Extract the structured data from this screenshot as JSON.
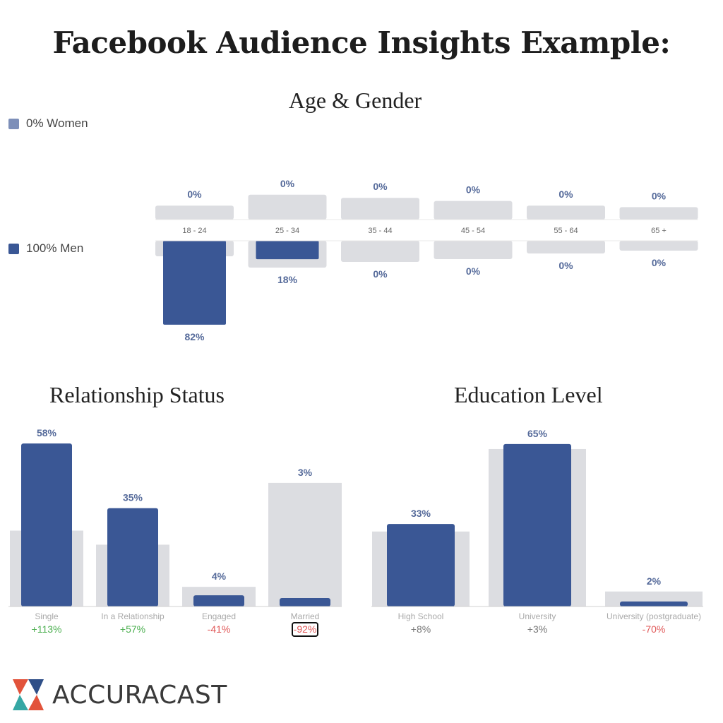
{
  "title": "Facebook Audience Insights Example:",
  "colors": {
    "men": "#3a5795",
    "women": "#7d8fb9",
    "baseline": "#dcdde1",
    "positive": "#4caf50",
    "negative": "#e05858",
    "neutral": "#777777",
    "logo_red": "#e2533b",
    "logo_teal": "#35a7a4",
    "logo_blue": "#2f4f88"
  },
  "logo": {
    "text": "ACCURACAST",
    "icon": "accuracast-logo-icon"
  },
  "chart_data": [
    {
      "type": "bar",
      "title": "Age & Gender",
      "legend": [
        {
          "name": "0% Women"
        },
        {
          "name": "100% Men"
        }
      ],
      "categories": [
        "18 - 24",
        "25 - 34",
        "35 - 44",
        "45 - 54",
        "55 - 64",
        "65 +"
      ],
      "series": [
        {
          "name": "Women",
          "values": [
            0,
            0,
            0,
            0,
            0,
            0
          ],
          "labels": [
            "0%",
            "0%",
            "0%",
            "0%",
            "0%",
            "0%"
          ]
        },
        {
          "name": "Men",
          "values": [
            82,
            18,
            0,
            0,
            0,
            0
          ],
          "labels": [
            "82%",
            "18%",
            "0%",
            "0%",
            "0%",
            "0%"
          ]
        }
      ],
      "baseline_up": [
        9,
        16,
        14,
        12,
        9,
        8
      ],
      "baseline_down": [
        11,
        19,
        15,
        13,
        9,
        7
      ]
    },
    {
      "type": "bar",
      "title": "Relationship Status",
      "categories": [
        "Single",
        "In a Relationship",
        "Engaged",
        "Married"
      ],
      "values": [
        58,
        35,
        4,
        3
      ],
      "labels": [
        "58%",
        "35%",
        "4%",
        "3%"
      ],
      "baseline": [
        27,
        22,
        7,
        44
      ],
      "deltas": [
        "+113%",
        "+57%",
        "-41%",
        "-92%"
      ]
    },
    {
      "type": "bar",
      "title": "Education Level",
      "categories": [
        "High School",
        "University",
        "University (postgraduate)"
      ],
      "values": [
        33,
        65,
        2
      ],
      "labels": [
        "33%",
        "65%",
        "2%"
      ],
      "baseline": [
        30,
        63,
        6
      ],
      "deltas": [
        "+8%",
        "+3%",
        "-70%"
      ]
    }
  ]
}
